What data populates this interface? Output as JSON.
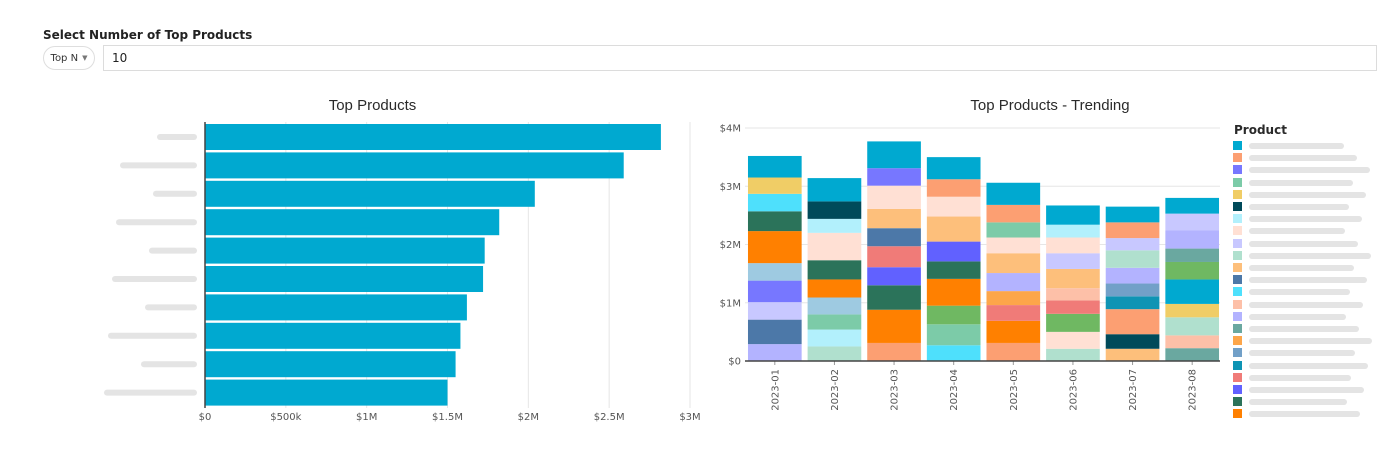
{
  "filter": {
    "label": "Select Number of Top Products",
    "mode_select": "Top N",
    "value": "10"
  },
  "colors": {
    "bar_primary": "#00a9d0",
    "grid": "#e6e6e6",
    "axis": "#444444",
    "tick_text": "#555555"
  },
  "chart_data": [
    {
      "type": "bar",
      "orientation": "horizontal",
      "title": "Top Products",
      "categories": [
        "Product 1",
        "Product 2",
        "Product 3",
        "Product 4",
        "Product 5",
        "Product 6",
        "Product 7",
        "Product 8",
        "Product 9",
        "Product 10"
      ],
      "category_labels_note": "labels are blurred/redacted in the screenshot",
      "values": [
        2820000,
        2590000,
        2040000,
        1820000,
        1730000,
        1720000,
        1620000,
        1580000,
        1550000,
        1500000
      ],
      "xlabel": "",
      "ylabel": "",
      "xlim": [
        0,
        3000000
      ],
      "xticks": [
        0,
        500000,
        1000000,
        1500000,
        2000000,
        2500000,
        3000000
      ],
      "xtick_labels": [
        "$0",
        "$500k",
        "$1M",
        "$1.5M",
        "$2M",
        "$2.5M",
        "$3M"
      ],
      "grid": true,
      "color": "#00a9d0"
    },
    {
      "type": "bar",
      "stacked": true,
      "title": "Top Products - Trending",
      "categories": [
        "2023-01",
        "2023-02",
        "2023-03",
        "2023-04",
        "2023-05",
        "2023-06",
        "2023-07",
        "2023-08"
      ],
      "ylim": [
        0,
        4000000
      ],
      "yticks": [
        0,
        1000000,
        2000000,
        3000000,
        4000000
      ],
      "ytick_labels": [
        "$0",
        "$1M",
        "$2M",
        "$3M",
        "$4M"
      ],
      "grid": true,
      "legend_title": "Product",
      "legend_position": "right",
      "legend_colors": [
        "#00a9d0",
        "#fc9f72",
        "#7777ff",
        "#7ccba8",
        "#f0cd66",
        "#004a5a",
        "#b2f0fc",
        "#ffe0d4",
        "#c8c8ff",
        "#b0e0ce",
        "#fdbf7b",
        "#4c78a8",
        "#4ee0fc",
        "#fdc0a8",
        "#b3b3ff",
        "#6aa8a0",
        "#fda64a",
        "#72a0c8",
        "#0e94b4",
        "#f07b78",
        "#6161ff",
        "#2b735a",
        "#ff8000"
      ],
      "legend_labels_note": "legend labels are blurred/redacted in the screenshot",
      "stacks": [
        {
          "category": "2023-01",
          "segments": [
            {
              "color": "#b3b3ff",
              "value": 290000
            },
            {
              "color": "#4c78a8",
              "value": 420000
            },
            {
              "color": "#c8c8ff",
              "value": 300000
            },
            {
              "color": "#7777ff",
              "value": 370000
            },
            {
              "color": "#9ecae1",
              "value": 300000
            },
            {
              "color": "#ff8000",
              "value": 550000
            },
            {
              "color": "#2b735a",
              "value": 340000
            },
            {
              "color": "#4ee0fc",
              "value": 300000
            },
            {
              "color": "#f0cd66",
              "value": 280000
            },
            {
              "color": "#00a9d0",
              "value": 370000
            }
          ]
        },
        {
          "category": "2023-02",
          "segments": [
            {
              "color": "#b0e0ce",
              "value": 250000
            },
            {
              "color": "#b2f0fc",
              "value": 290000
            },
            {
              "color": "#7ccba8",
              "value": 260000
            },
            {
              "color": "#9ecae1",
              "value": 290000
            },
            {
              "color": "#ff8000",
              "value": 310000
            },
            {
              "color": "#2b735a",
              "value": 330000
            },
            {
              "color": "#ffe0d4",
              "value": 470000
            },
            {
              "color": "#b2f0fc",
              "value": 240000
            },
            {
              "color": "#004a5a",
              "value": 300000
            },
            {
              "color": "#00a9d0",
              "value": 400000
            }
          ]
        },
        {
          "category": "2023-03",
          "segments": [
            {
              "color": "#fc9f72",
              "value": 310000
            },
            {
              "color": "#ff8000",
              "value": 570000
            },
            {
              "color": "#2b735a",
              "value": 420000
            },
            {
              "color": "#6161ff",
              "value": 310000
            },
            {
              "color": "#f07b78",
              "value": 360000
            },
            {
              "color": "#4c78a8",
              "value": 310000
            },
            {
              "color": "#fdbf7b",
              "value": 330000
            },
            {
              "color": "#ffe0d4",
              "value": 400000
            },
            {
              "color": "#7777ff",
              "value": 300000
            },
            {
              "color": "#00a9d0",
              "value": 460000
            }
          ]
        },
        {
          "category": "2023-04",
          "segments": [
            {
              "color": "#4ee0fc",
              "value": 270000
            },
            {
              "color": "#7ccba8",
              "value": 360000
            },
            {
              "color": "#6fb862",
              "value": 320000
            },
            {
              "color": "#ff8000",
              "value": 460000
            },
            {
              "color": "#2b735a",
              "value": 300000
            },
            {
              "color": "#6161ff",
              "value": 340000
            },
            {
              "color": "#fdbf7b",
              "value": 430000
            },
            {
              "color": "#ffe0d4",
              "value": 340000
            },
            {
              "color": "#fc9f72",
              "value": 300000
            },
            {
              "color": "#00a9d0",
              "value": 380000
            }
          ]
        },
        {
          "category": "2023-05",
          "segments": [
            {
              "color": "#fc9f72",
              "value": 310000
            },
            {
              "color": "#ff8000",
              "value": 380000
            },
            {
              "color": "#f07b78",
              "value": 270000
            },
            {
              "color": "#fda64a",
              "value": 240000
            },
            {
              "color": "#b3b3ff",
              "value": 310000
            },
            {
              "color": "#fdbf7b",
              "value": 340000
            },
            {
              "color": "#ffe0d4",
              "value": 270000
            },
            {
              "color": "#7ccba8",
              "value": 260000
            },
            {
              "color": "#fc9f72",
              "value": 300000
            },
            {
              "color": "#00a9d0",
              "value": 380000
            }
          ]
        },
        {
          "category": "2023-06",
          "segments": [
            {
              "color": "#b0e0ce",
              "value": 210000
            },
            {
              "color": "#ffe0d4",
              "value": 290000
            },
            {
              "color": "#6fb862",
              "value": 310000
            },
            {
              "color": "#f07b78",
              "value": 230000
            },
            {
              "color": "#fdc0a8",
              "value": 210000
            },
            {
              "color": "#fdbf7b",
              "value": 330000
            },
            {
              "color": "#c8c8ff",
              "value": 270000
            },
            {
              "color": "#ffe0d4",
              "value": 270000
            },
            {
              "color": "#b2f0fc",
              "value": 220000
            },
            {
              "color": "#00a9d0",
              "value": 330000
            }
          ]
        },
        {
          "category": "2023-07",
          "segments": [
            {
              "color": "#fdbf7b",
              "value": 210000
            },
            {
              "color": "#004a5a",
              "value": 250000
            },
            {
              "color": "#fc9f72",
              "value": 430000
            },
            {
              "color": "#0e94b4",
              "value": 220000
            },
            {
              "color": "#72a0c8",
              "value": 220000
            },
            {
              "color": "#b3b3ff",
              "value": 270000
            },
            {
              "color": "#b0e0ce",
              "value": 300000
            },
            {
              "color": "#c8c8ff",
              "value": 210000
            },
            {
              "color": "#fc9f72",
              "value": 270000
            },
            {
              "color": "#00a9d0",
              "value": 270000
            }
          ]
        },
        {
          "category": "2023-08",
          "segments": [
            {
              "color": "#6aa8a0",
              "value": 220000
            },
            {
              "color": "#fdc0a8",
              "value": 220000
            },
            {
              "color": "#b0e0ce",
              "value": 310000
            },
            {
              "color": "#f0cd66",
              "value": 230000
            },
            {
              "color": "#00a9d0",
              "value": 420000
            },
            {
              "color": "#6fb862",
              "value": 300000
            },
            {
              "color": "#6aa8a0",
              "value": 230000
            },
            {
              "color": "#b3b3ff",
              "value": 310000
            },
            {
              "color": "#c8c8ff",
              "value": 290000
            },
            {
              "color": "#00a9d0",
              "value": 270000
            }
          ]
        }
      ]
    }
  ]
}
